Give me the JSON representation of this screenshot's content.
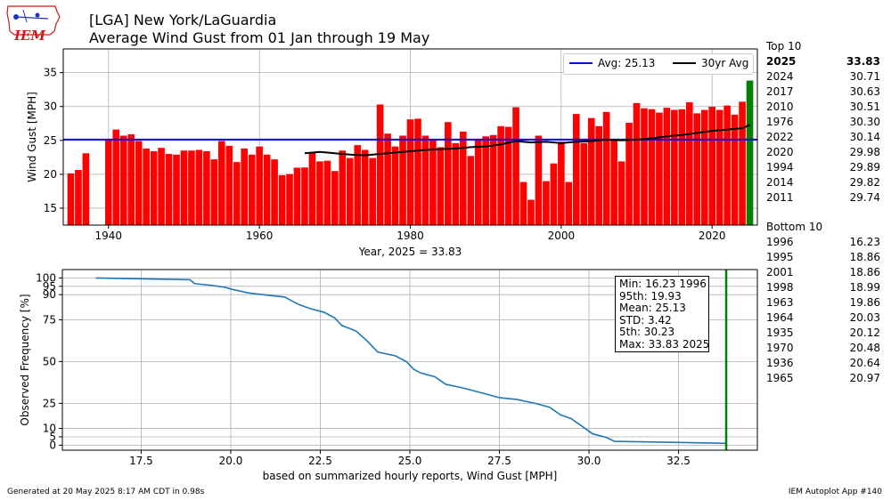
{
  "header": {
    "title_line1": "[LGA] New York/LaGuardia",
    "title_line2": "Average Wind Gust from 01 Jan through 19 May",
    "logo_text": "IEM"
  },
  "colors": {
    "bars": "#ff0000",
    "highlight": "#008000",
    "avg_line": "#0000ff",
    "thirty_yr": "#000000",
    "cdf_line": "#1f77b4"
  },
  "chart_data": [
    {
      "type": "bar",
      "title": "",
      "xlabel": "Year, 2025 = 33.83",
      "ylabel": "Wind Gust [MPH]",
      "xlim": [
        1934,
        2026
      ],
      "ylim": [
        12.5,
        38.5
      ],
      "xticks": [
        1940,
        1960,
        1980,
        2000,
        2020
      ],
      "yticks": [
        15,
        20,
        25,
        30,
        35
      ],
      "grid": true,
      "legend_placement": "top-right",
      "years": [
        1935,
        1936,
        1937,
        1940,
        1941,
        1942,
        1943,
        1944,
        1945,
        1946,
        1947,
        1948,
        1949,
        1950,
        1951,
        1952,
        1953,
        1954,
        1955,
        1956,
        1957,
        1958,
        1959,
        1960,
        1961,
        1962,
        1963,
        1964,
        1965,
        1966,
        1967,
        1968,
        1969,
        1970,
        1971,
        1972,
        1973,
        1974,
        1975,
        1976,
        1977,
        1978,
        1979,
        1980,
        1981,
        1982,
        1983,
        1984,
        1985,
        1986,
        1987,
        1988,
        1989,
        1990,
        1991,
        1992,
        1993,
        1994,
        1995,
        1996,
        1997,
        1998,
        1999,
        2000,
        2001,
        2002,
        2003,
        2004,
        2005,
        2006,
        2007,
        2008,
        2009,
        2010,
        2011,
        2012,
        2013,
        2014,
        2015,
        2016,
        2017,
        2018,
        2019,
        2020,
        2021,
        2022,
        2023,
        2024,
        2025
      ],
      "values": [
        20.12,
        20.64,
        23.1,
        25.0,
        26.6,
        25.7,
        25.9,
        24.9,
        23.8,
        23.4,
        23.9,
        23.0,
        22.9,
        23.5,
        23.5,
        23.6,
        23.4,
        22.2,
        24.9,
        24.2,
        21.8,
        23.8,
        22.9,
        24.1,
        22.9,
        22.2,
        19.86,
        20.03,
        20.97,
        21.0,
        23.2,
        21.9,
        22.0,
        20.48,
        23.5,
        22.4,
        24.3,
        23.6,
        22.4,
        30.3,
        26.0,
        24.1,
        25.7,
        28.1,
        28.2,
        25.7,
        25.2,
        24.0,
        27.7,
        24.6,
        26.3,
        22.7,
        25.1,
        25.6,
        25.8,
        27.1,
        27.0,
        29.89,
        18.86,
        16.23,
        25.7,
        18.99,
        21.6,
        24.8,
        18.86,
        28.9,
        24.6,
        28.3,
        27.1,
        29.2,
        25.0,
        21.9,
        27.6,
        30.51,
        29.74,
        29.6,
        29.1,
        29.82,
        29.5,
        29.6,
        30.63,
        29.0,
        29.5,
        29.98,
        29.5,
        30.14,
        28.8,
        30.71,
        33.83
      ],
      "highlight_year": 2025,
      "series": [
        {
          "name": "Avg: 25.13",
          "kind": "hline",
          "value": 25.13
        },
        {
          "name": "30yr Avg",
          "kind": "line",
          "x": [
            1966,
            1968,
            1970,
            1972,
            1974,
            1976,
            1978,
            1980,
            1982,
            1984,
            1986,
            1988,
            1990,
            1992,
            1994,
            1996,
            1998,
            2000,
            2002,
            2004,
            2006,
            2008,
            2010,
            2012,
            2014,
            2016,
            2018,
            2020,
            2022,
            2024,
            2025
          ],
          "y": [
            23.1,
            23.3,
            23.1,
            22.9,
            22.8,
            23.0,
            23.2,
            23.4,
            23.6,
            23.7,
            23.8,
            24.0,
            24.1,
            24.4,
            24.9,
            24.7,
            24.8,
            24.6,
            24.8,
            24.9,
            25.1,
            25.0,
            25.1,
            25.3,
            25.6,
            25.8,
            26.1,
            26.4,
            26.6,
            26.8,
            27.3
          ]
        }
      ]
    },
    {
      "type": "line",
      "title": "",
      "xlabel": "based on summarized hourly reports, Wind Gust [MPH]",
      "ylabel": "Observed Frequency [%]",
      "xlim": [
        15.3,
        34.7
      ],
      "ylim": [
        -3,
        105
      ],
      "xticks": [
        17.5,
        20.0,
        22.5,
        25.0,
        27.5,
        30.0,
        32.5
      ],
      "xtick_labels": [
        "17.5",
        "20.0",
        "22.5",
        "25.0",
        "27.5",
        "30.0",
        "32.5"
      ],
      "yticks": [
        0,
        5,
        10,
        25,
        50,
        75,
        90,
        95,
        100
      ],
      "grid": true,
      "series": [
        {
          "name": "",
          "x": [
            16.23,
            18.86,
            18.99,
            19.5,
            19.86,
            20.03,
            20.5,
            20.97,
            21.5,
            21.9,
            22.2,
            22.6,
            22.9,
            23.1,
            23.5,
            23.8,
            24.1,
            24.6,
            24.9,
            25.1,
            25.3,
            25.7,
            26.0,
            26.5,
            27.1,
            27.5,
            28.0,
            28.5,
            28.9,
            29.2,
            29.5,
            29.8,
            30.1,
            30.5,
            30.71,
            33.83
          ],
          "y": [
            100,
            98.9,
            96.6,
            95.5,
            94.3,
            93.2,
            91,
            89.8,
            88.6,
            84.1,
            81.8,
            79.5,
            76.1,
            71.6,
            68.2,
            62.5,
            55.7,
            53.4,
            50,
            45.5,
            43.2,
            40.9,
            36.4,
            34.1,
            30.7,
            28.4,
            27.3,
            25,
            22.7,
            18.2,
            15.9,
            11.4,
            6.8,
            4.5,
            2.3,
            1.1
          ]
        }
      ],
      "vline": {
        "x": 33.83
      },
      "stats_box": [
        "Min: 16.23 1996",
        "95th: 19.93",
        "Mean: 25.13",
        "STD: 3.42",
        "5th: 30.23",
        "Max: 33.83 2025"
      ]
    }
  ],
  "rankings": {
    "top_title": "Top 10",
    "top": [
      {
        "year": "2025",
        "value": "33.83"
      },
      {
        "year": "2024",
        "value": "30.71"
      },
      {
        "year": "2017",
        "value": "30.63"
      },
      {
        "year": "2010",
        "value": "30.51"
      },
      {
        "year": "1976",
        "value": "30.30"
      },
      {
        "year": "2022",
        "value": "30.14"
      },
      {
        "year": "2020",
        "value": "29.98"
      },
      {
        "year": "1994",
        "value": "29.89"
      },
      {
        "year": "2014",
        "value": "29.82"
      },
      {
        "year": "2011",
        "value": "29.74"
      }
    ],
    "bottom_title": "Bottom 10",
    "bottom": [
      {
        "year": "1996",
        "value": "16.23"
      },
      {
        "year": "1995",
        "value": "18.86"
      },
      {
        "year": "2001",
        "value": "18.86"
      },
      {
        "year": "1998",
        "value": "18.99"
      },
      {
        "year": "1963",
        "value": "19.86"
      },
      {
        "year": "1964",
        "value": "20.03"
      },
      {
        "year": "1935",
        "value": "20.12"
      },
      {
        "year": "1970",
        "value": "20.48"
      },
      {
        "year": "1936",
        "value": "20.64"
      },
      {
        "year": "1965",
        "value": "20.97"
      }
    ]
  },
  "footer": {
    "left": "Generated at 20 May 2025 8:17 AM CDT in 0.98s",
    "right": "IEM Autoplot App #140"
  }
}
